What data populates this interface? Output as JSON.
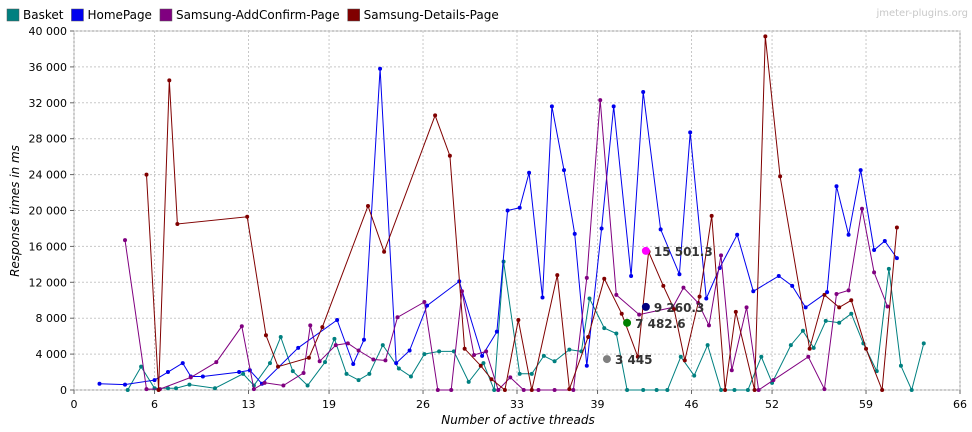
{
  "watermark": "jmeter-plugins.org",
  "chart_data": {
    "type": "line",
    "title": "",
    "xlabel": "Number of active threads",
    "ylabel": "Response times in ms",
    "xlim": [
      0,
      66
    ],
    "ylim": [
      0,
      40000
    ],
    "x_ticks": [
      0,
      6,
      13,
      19,
      26,
      33,
      39,
      46,
      52,
      59,
      66
    ],
    "y_ticks": [
      0,
      4000,
      8000,
      12000,
      16000,
      20000,
      24000,
      28000,
      32000,
      36000,
      40000
    ],
    "x_tick_labels": [
      "0",
      "6",
      "13",
      "19",
      "26",
      "33",
      "39",
      "46",
      "52",
      "59",
      "66"
    ],
    "y_tick_labels": [
      "0",
      "4 000",
      "8 000",
      "12 000",
      "16 000",
      "20 000",
      "24 000",
      "28 000",
      "32 000",
      "36 000",
      "40 000"
    ],
    "grid": true,
    "legend_position": "top-left",
    "series": [
      {
        "name": "Basket",
        "color": "#008080",
        "points": [
          [
            4,
            0
          ],
          [
            5,
            2600
          ],
          [
            6,
            200
          ],
          [
            7,
            200
          ],
          [
            7.6,
            200
          ],
          [
            8.6,
            600
          ],
          [
            10.5,
            200
          ],
          [
            12.6,
            1800
          ],
          [
            13.4,
            500
          ],
          [
            14.6,
            3000
          ],
          [
            15.4,
            5900
          ],
          [
            16.3,
            2100
          ],
          [
            17.4,
            500
          ],
          [
            18.7,
            3100
          ],
          [
            19.4,
            5700
          ],
          [
            20.3,
            1800
          ],
          [
            21.2,
            1100
          ],
          [
            22,
            1800
          ],
          [
            23,
            5000
          ],
          [
            24.2,
            2400
          ],
          [
            25.1,
            1500
          ],
          [
            26.1,
            4000
          ],
          [
            27.2,
            4300
          ],
          [
            28.3,
            4300
          ],
          [
            29.4,
            900
          ],
          [
            30.5,
            3000
          ],
          [
            31.3,
            0
          ],
          [
            32,
            14300
          ],
          [
            33.2,
            1800
          ],
          [
            34.1,
            1800
          ],
          [
            35,
            3800
          ],
          [
            35.8,
            3200
          ],
          [
            36.9,
            4500
          ],
          [
            37.8,
            4300
          ],
          [
            38.4,
            10200
          ],
          [
            39.5,
            6900
          ],
          [
            40.4,
            6300
          ],
          [
            41.2,
            0
          ],
          [
            42.4,
            0
          ],
          [
            43.4,
            0
          ],
          [
            44.2,
            0
          ],
          [
            45.2,
            3700
          ],
          [
            46.2,
            1600
          ],
          [
            47.2,
            5000
          ],
          [
            48.2,
            0
          ],
          [
            49.2,
            0
          ],
          [
            50.2,
            0
          ],
          [
            51.2,
            3700
          ],
          [
            52,
            800
          ],
          [
            53.4,
            5000
          ],
          [
            54.3,
            6600
          ],
          [
            55.1,
            4700
          ],
          [
            56,
            7700
          ],
          [
            57,
            7500
          ],
          [
            57.9,
            8500
          ],
          [
            58.8,
            5200
          ],
          [
            59.8,
            2100
          ],
          [
            60.7,
            13500
          ],
          [
            61.6,
            2700
          ],
          [
            62.4,
            0
          ],
          [
            63.3,
            5200
          ]
        ]
      },
      {
        "name": "HomePage",
        "color": "#0000ee",
        "points": [
          [
            1.9,
            700
          ],
          [
            3.8,
            600
          ],
          [
            6,
            1100
          ],
          [
            7,
            2000
          ],
          [
            8.1,
            3000
          ],
          [
            8.7,
            1500
          ],
          [
            9.6,
            1500
          ],
          [
            12.3,
            2000
          ],
          [
            13.1,
            2200
          ],
          [
            14,
            700
          ],
          [
            16.7,
            4700
          ],
          [
            19.6,
            7800
          ],
          [
            20.8,
            2900
          ],
          [
            21.6,
            5600
          ],
          [
            22.8,
            35800
          ],
          [
            24,
            3000
          ],
          [
            25,
            4400
          ],
          [
            26.3,
            9400
          ],
          [
            28.7,
            12100
          ],
          [
            30.4,
            3800
          ],
          [
            31.5,
            6500
          ],
          [
            32.3,
            20000
          ],
          [
            33.2,
            20300
          ],
          [
            33.9,
            24200
          ],
          [
            34.9,
            10300
          ],
          [
            35.6,
            31600
          ],
          [
            36.5,
            24500
          ],
          [
            37.3,
            17400
          ],
          [
            38.2,
            2700
          ],
          [
            39.3,
            18000
          ],
          [
            40.2,
            31600
          ],
          [
            41.5,
            12700
          ],
          [
            42.4,
            33200
          ],
          [
            43.7,
            17900
          ],
          [
            45.1,
            12900
          ],
          [
            45.9,
            28700
          ],
          [
            47.1,
            10200
          ],
          [
            48.1,
            13600
          ],
          [
            49.4,
            17300
          ],
          [
            50.6,
            11000
          ],
          [
            52.5,
            12700
          ],
          [
            53.5,
            11600
          ],
          [
            54.5,
            9200
          ],
          [
            56.1,
            10900
          ],
          [
            56.8,
            22700
          ],
          [
            57.7,
            17300
          ],
          [
            58.6,
            24500
          ],
          [
            59.6,
            15600
          ],
          [
            60.4,
            16600
          ],
          [
            61.3,
            14700
          ]
        ]
      },
      {
        "name": "Samsung-AddConfirm-Page",
        "color": "#800080",
        "points": [
          [
            3.8,
            16700
          ],
          [
            5.4,
            100
          ],
          [
            6.4,
            100
          ],
          [
            8.7,
            1400
          ],
          [
            10.6,
            3100
          ],
          [
            12.5,
            7100
          ],
          [
            13.4,
            100
          ],
          [
            14.2,
            800
          ],
          [
            15.6,
            500
          ],
          [
            17.1,
            1900
          ],
          [
            17.6,
            7200
          ],
          [
            18.3,
            3200
          ],
          [
            19.5,
            5000
          ],
          [
            20.4,
            5200
          ],
          [
            21.2,
            4400
          ],
          [
            22.3,
            3400
          ],
          [
            23.2,
            3300
          ],
          [
            24.1,
            8100
          ],
          [
            26.1,
            9800
          ],
          [
            27.1,
            0
          ],
          [
            28.1,
            0
          ],
          [
            28.9,
            11000
          ],
          [
            29.8,
            3900
          ],
          [
            30.7,
            4300
          ],
          [
            31.6,
            0
          ],
          [
            32.5,
            1400
          ],
          [
            33.5,
            0
          ],
          [
            34.6,
            0
          ],
          [
            35.8,
            0
          ],
          [
            37.2,
            0
          ],
          [
            38.2,
            12500
          ],
          [
            39.2,
            32300
          ],
          [
            40.4,
            10600
          ],
          [
            42.1,
            8400
          ],
          [
            44.6,
            9200
          ],
          [
            45.4,
            11400
          ],
          [
            46.5,
            9700
          ],
          [
            47.3,
            7200
          ],
          [
            48.2,
            15000
          ],
          [
            49,
            2200
          ],
          [
            50.1,
            9200
          ],
          [
            51,
            0
          ],
          [
            52.1,
            1100
          ],
          [
            54.7,
            3700
          ],
          [
            55.9,
            100
          ],
          [
            56.8,
            10700
          ],
          [
            57.7,
            11100
          ],
          [
            58.7,
            20200
          ],
          [
            59.6,
            13100
          ],
          [
            60.6,
            9300
          ]
        ]
      },
      {
        "name": "Samsung-Details-Page",
        "color": "#800000",
        "points": [
          [
            5.4,
            24000
          ],
          [
            6.3,
            0
          ],
          [
            7.1,
            34500
          ],
          [
            7.7,
            18500
          ],
          [
            12.9,
            19300
          ],
          [
            14.3,
            6100
          ],
          [
            15.2,
            2600
          ],
          [
            17.5,
            3600
          ],
          [
            18.5,
            7000
          ],
          [
            21.9,
            20500
          ],
          [
            23.1,
            15400
          ],
          [
            26.9,
            30600
          ],
          [
            28,
            26100
          ],
          [
            29.1,
            4600
          ],
          [
            30.3,
            2700
          ],
          [
            31.1,
            1200
          ],
          [
            32.1,
            0
          ],
          [
            33.1,
            7800
          ],
          [
            34.1,
            0
          ],
          [
            36,
            12800
          ],
          [
            36.9,
            100
          ],
          [
            38.3,
            5900
          ],
          [
            39.5,
            12400
          ],
          [
            40.8,
            8500
          ],
          [
            42,
            3700
          ],
          [
            42.8,
            15400
          ],
          [
            43.9,
            11600
          ],
          [
            44.7,
            9000
          ],
          [
            45.5,
            3300
          ],
          [
            46.6,
            10400
          ],
          [
            47.5,
            19400
          ],
          [
            48.5,
            0
          ],
          [
            49.3,
            8700
          ],
          [
            50.7,
            0
          ],
          [
            51.5,
            39400
          ],
          [
            52.6,
            23800
          ],
          [
            54.8,
            4600
          ],
          [
            55.9,
            10600
          ],
          [
            57,
            9200
          ],
          [
            57.9,
            10000
          ],
          [
            59,
            4600
          ],
          [
            60.2,
            0
          ],
          [
            61.3,
            18100
          ]
        ]
      }
    ],
    "averages": [
      {
        "series": "HomePage",
        "x": 42.6,
        "y": 15501.3,
        "label": "15 501.3",
        "color": "#ff00ff"
      },
      {
        "series": "Samsung-AddConfirm-Page",
        "x": 42.6,
        "y": 9260.3,
        "label": "9 260.3",
        "color": "#000080"
      },
      {
        "series": "Samsung-Details-Page",
        "x": 41.2,
        "y": 7482.6,
        "label": "7 482.6",
        "color": "#008000"
      },
      {
        "series": "Basket",
        "x": 39.7,
        "y": 3445,
        "label": "3 445",
        "color": "#808080"
      }
    ]
  }
}
